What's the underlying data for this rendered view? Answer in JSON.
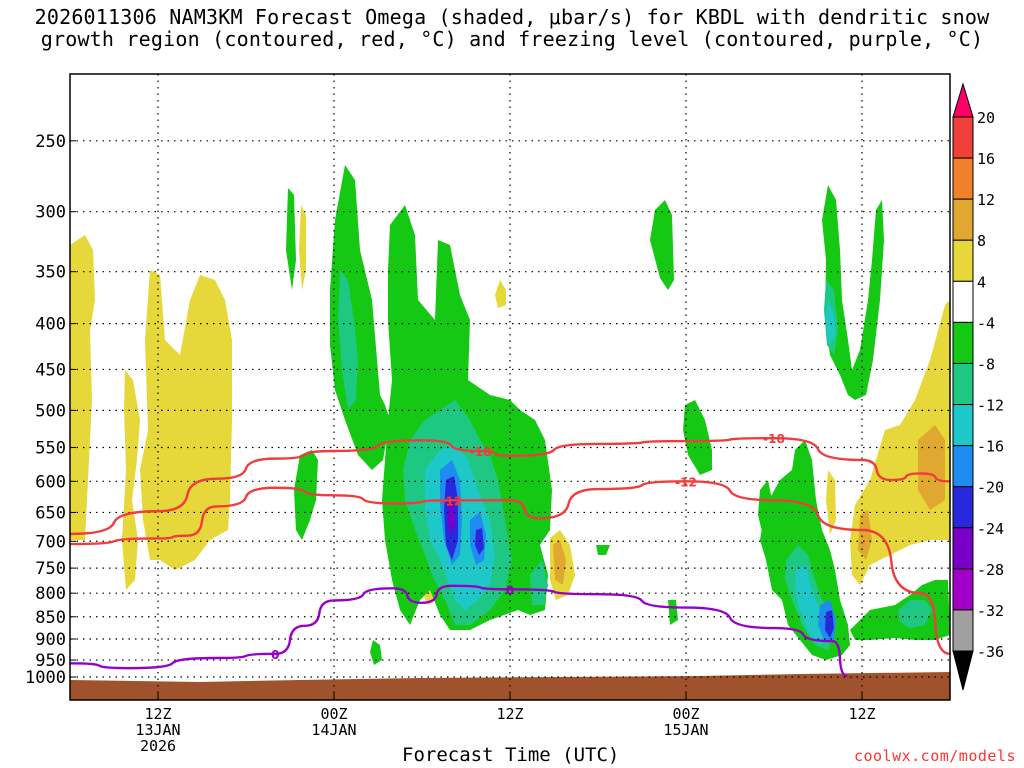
{
  "chart_data": {
    "type": "heatmap",
    "title_line1": "2026011306 NAM3KM Forecast Omega (shaded, μbar/s) for KBDL with dendritic snow",
    "title_line2": "growth region (contoured, red, °C) and freezing level (contoured, purple, °C)",
    "xlabel": "Forecast Time (UTC)",
    "y_axis": {
      "variable": "pressure (mb)",
      "scale": "log",
      "range": [
        1000,
        200
      ],
      "ticks": [
        250,
        300,
        350,
        400,
        450,
        500,
        550,
        600,
        650,
        700,
        750,
        800,
        850,
        900,
        950,
        1000
      ]
    },
    "x_axis": {
      "range": [
        "2026-01-13T06Z",
        "2026-01-15T18Z"
      ],
      "ticks": [
        {
          "time": "2026-01-13T12Z",
          "label1": "12Z",
          "label2": "13JAN",
          "label3": "2026"
        },
        {
          "time": "2026-01-14T00Z",
          "label1": "00Z",
          "label2": "14JAN",
          "label3": ""
        },
        {
          "time": "2026-01-14T12Z",
          "label1": "12Z",
          "label2": "",
          "label3": ""
        },
        {
          "time": "2026-01-15T00Z",
          "label1": "00Z",
          "label2": "15JAN",
          "label3": ""
        },
        {
          "time": "2026-01-15T12Z",
          "label1": "12Z",
          "label2": "",
          "label3": ""
        }
      ]
    },
    "grid": true,
    "colorbar": {
      "labels": [
        "20",
        "16",
        "12",
        "8",
        "4",
        "-4",
        "-8",
        "-12",
        "-16",
        "-20",
        "-24",
        "-28",
        "-32",
        "-36"
      ],
      "colors": [
        "#ff0066",
        "#f0403c",
        "#f0802c",
        "#e0a830",
        "#e6d83a",
        "#ffffff",
        "#14c814",
        "#1ec882",
        "#1ec8c8",
        "#1e8cf0",
        "#2828dc",
        "#7800c8",
        "#a000c8",
        "#a0a0a0",
        "#000000"
      ]
    },
    "contours": [
      {
        "label": "-18",
        "color": "#f03c3c",
        "points": [
          [
            "2026-01-13T06Z",
            687
          ],
          [
            "2026-01-13T12Z",
            648
          ],
          [
            "2026-01-13T16Z",
            596
          ],
          [
            "2026-01-13T20Z",
            566
          ],
          [
            "2026-01-14T00Z",
            555
          ],
          [
            "2026-01-14T06Z",
            540
          ],
          [
            "2026-01-14T10Z",
            555
          ],
          [
            "2026-01-14T12Z",
            562
          ],
          [
            "2026-01-14T18Z",
            545
          ],
          [
            "2026-01-15T00Z",
            541
          ],
          [
            "2026-01-15T06Z",
            537
          ],
          [
            "2026-01-15T12Z",
            568
          ],
          [
            "2026-01-15T14Z",
            598
          ],
          [
            "2026-01-15T16Z",
            588
          ],
          [
            "2026-01-15T18Z",
            600
          ]
        ]
      },
      {
        "label": "-12",
        "color": "#f03c3c",
        "points": [
          [
            "2026-01-13T06Z",
            705
          ],
          [
            "2026-01-13T12Z",
            695
          ],
          [
            "2026-01-13T14Z",
            690
          ],
          [
            "2026-01-13T16Z",
            640
          ],
          [
            "2026-01-13T20Z",
            610
          ],
          [
            "2026-01-14T00Z",
            622
          ],
          [
            "2026-01-14T04Z",
            635
          ],
          [
            "2026-01-14T08Z",
            630
          ],
          [
            "2026-01-14T12Z",
            630
          ],
          [
            "2026-01-14T14Z",
            660
          ],
          [
            "2026-01-14T18Z",
            612
          ],
          [
            "2026-01-15T00Z",
            600
          ],
          [
            "2026-01-15T06Z",
            630
          ],
          [
            "2026-01-15T12Z",
            680
          ],
          [
            "2026-01-15T16Z",
            800
          ],
          [
            "2026-01-15T18Z",
            935
          ]
        ]
      },
      {
        "label": "0",
        "color": "#9600c8",
        "points": [
          [
            "2026-01-13T06Z",
            958
          ],
          [
            "2026-01-13T10Z",
            970
          ],
          [
            "2026-01-13T16Z",
            945
          ],
          [
            "2026-01-13T20Z",
            935
          ],
          [
            "2026-01-13T22Z",
            870
          ],
          [
            "2026-01-14T00Z",
            815
          ],
          [
            "2026-01-14T04Z",
            790
          ],
          [
            "2026-01-14T06Z",
            820
          ],
          [
            "2026-01-14T08Z",
            785
          ],
          [
            "2026-01-14T12Z",
            792
          ],
          [
            "2026-01-14T18Z",
            802
          ],
          [
            "2026-01-15T00Z",
            830
          ],
          [
            "2026-01-15T06Z",
            875
          ],
          [
            "2026-01-15T10Z",
            905
          ],
          [
            "2026-01-15T11Z",
            990
          ]
        ]
      }
    ],
    "omega_regions": [
      {
        "name": "rising motion cluster 14JAN",
        "peak_ubar_s": -26,
        "time": "2026-01-14T07Z",
        "pressure_mb": 660
      },
      {
        "name": "rising motion cluster 15JAN",
        "peak_ubar_s": -22,
        "time": "2026-01-15T10Z",
        "pressure_mb": 880
      },
      {
        "name": "sinking motion 13JAN",
        "peak_ubar_s": 6,
        "time": "2026-01-13T12Z",
        "pressure_mb": 550
      },
      {
        "name": "sinking motion 15JAN",
        "peak_ubar_s": 10,
        "time": "2026-01-15T15Z",
        "pressure_mb": 620
      }
    ],
    "credit": "coolwx.com/models"
  }
}
